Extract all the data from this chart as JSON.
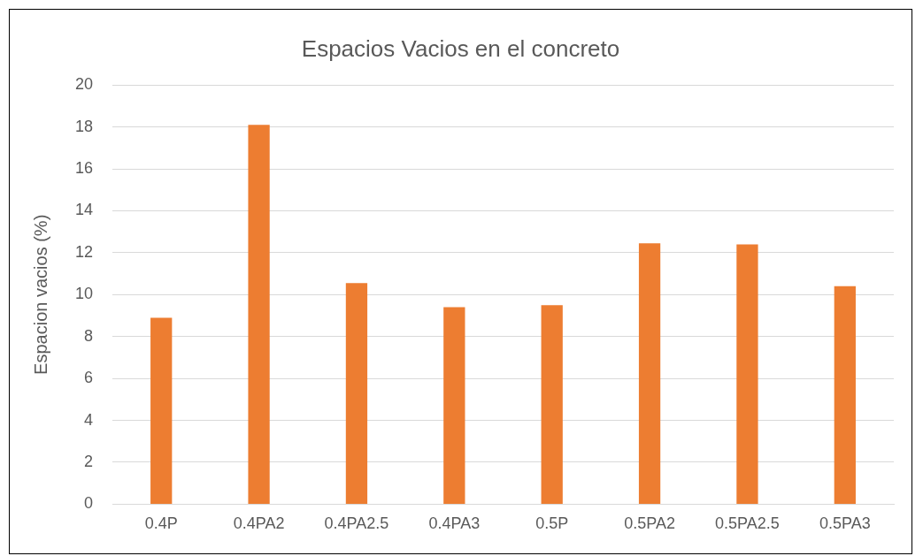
{
  "chart_data": {
    "type": "bar",
    "title": "Espacios Vacios en el concreto",
    "ylabel": "Espacion vacios (%)",
    "categories": [
      "0.4P",
      "0.4PA2",
      "0.4PA2.5",
      "0.4PA3",
      "0.5P",
      "0.5PA2",
      "0.5PA2.5",
      "0.5PA3"
    ],
    "values": [
      8.9,
      18.1,
      10.55,
      9.4,
      9.5,
      12.45,
      12.4,
      10.4
    ],
    "color": "#ed7d31",
    "ylim": [
      0,
      20
    ],
    "yticks": [
      0,
      2,
      4,
      6,
      8,
      10,
      12,
      14,
      16,
      18,
      20
    ],
    "grid": "y",
    "legend": false
  }
}
